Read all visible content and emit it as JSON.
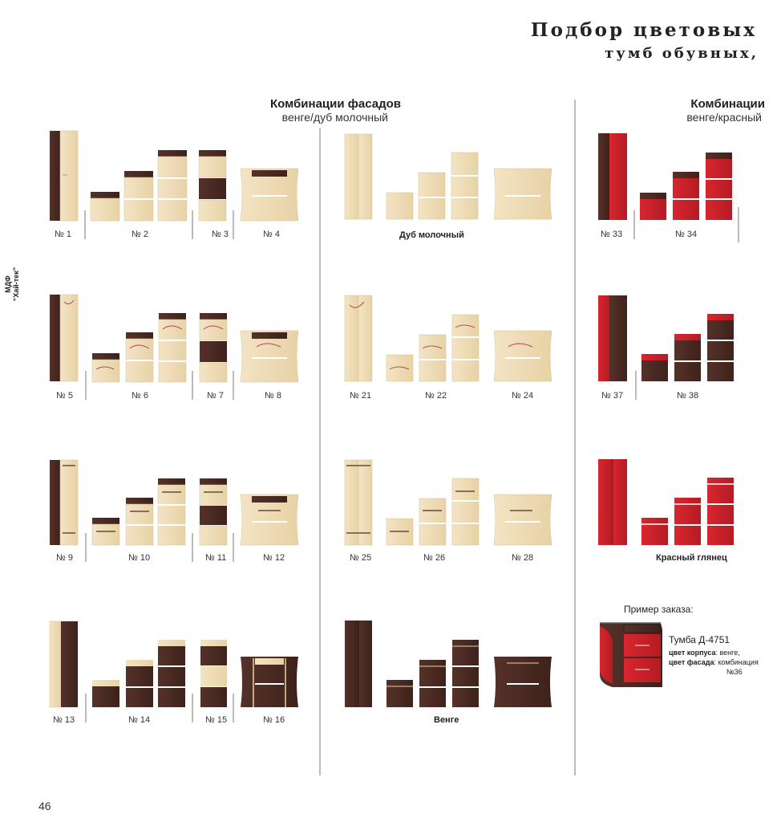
{
  "header": {
    "title_line1": "Подбор цветовых",
    "title_line2": "тумб обувных,"
  },
  "side_label": {
    "line1": "МДФ",
    "line2": "“Хай-тек”"
  },
  "sections": {
    "left": {
      "title": "Комбинации фасадов",
      "subtitle": "венге/дуб молочный"
    },
    "right": {
      "title": "Комбинации",
      "subtitle": "венге/красный"
    }
  },
  "rows": [
    {
      "labels": [
        "№ 1",
        "№ 2",
        "№ 3",
        "№ 4"
      ],
      "mid_label": "Дуб молочный",
      "right_labels": [
        "№ 33",
        "№ 34"
      ]
    },
    {
      "labels": [
        "№ 5",
        "№ 6",
        "№ 7",
        "№ 8"
      ],
      "mid_labels": [
        "№ 21",
        "№ 22",
        "№ 24"
      ],
      "right_labels": [
        "№ 37",
        "№ 38"
      ]
    },
    {
      "labels": [
        "№ 9",
        "№ 10",
        "№ 11",
        "№ 12"
      ],
      "mid_labels": [
        "№ 25",
        "№ 26",
        "№ 28"
      ],
      "right_label": "Красный глянец"
    },
    {
      "labels": [
        "№ 13",
        "№ 14",
        "№ 15",
        "№ 16"
      ],
      "mid_label": "Венге"
    }
  ],
  "order_example": {
    "title": "Пример заказа:",
    "model": "Тумба Д-4751",
    "body_color_label": "цвет корпуса",
    "body_color_value": ": венге,",
    "facade_color_label": "цвет фасада",
    "facade_color_value": ":  комбинация",
    "facade_color_num": "№36"
  },
  "page_number": "46",
  "colors": {
    "venge": "#4a2a22",
    "oak": "#efdcb6",
    "red": "#c8202a",
    "divider": "#bcbcbc"
  }
}
